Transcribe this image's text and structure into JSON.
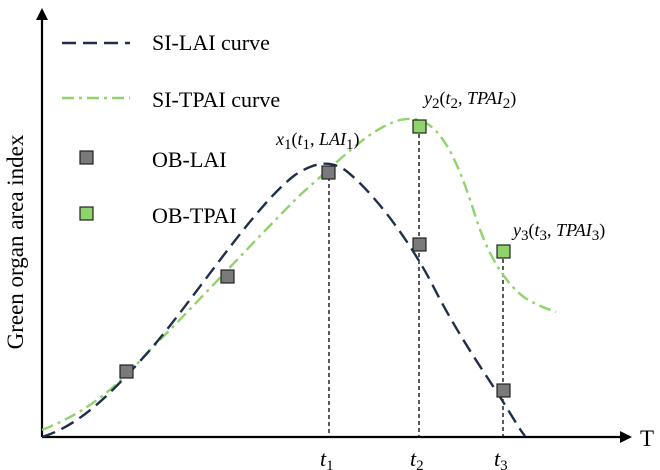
{
  "legend": {
    "items": [
      {
        "label": "SI-LAI curve",
        "kind": "line",
        "color": "#1f2f4a",
        "dash": "dashed"
      },
      {
        "label": "SI-TPAI curve",
        "kind": "line",
        "color": "#8fd36b",
        "dash": "dash-dot"
      },
      {
        "label": "OB-LAI",
        "kind": "marker",
        "color": "#7a7a7a"
      },
      {
        "label": "OB-TPAI",
        "kind": "marker",
        "color": "#8fd36b"
      }
    ]
  },
  "axes": {
    "y_title": "Green organ area index",
    "x_end_label": "T"
  },
  "ticks": [
    {
      "main": "t",
      "sub": "1"
    },
    {
      "main": "t",
      "sub": "2"
    },
    {
      "main": "t",
      "sub": "3"
    }
  ],
  "annotations": [
    {
      "var": "x",
      "idx": "1",
      "open": "(",
      "t": "t",
      "tsub": "1",
      "comma": ", ",
      "val": "LAI",
      "vsub": "1",
      "close": ")"
    },
    {
      "var": "y",
      "idx": "2",
      "open": "(",
      "t": "t",
      "tsub": "2",
      "comma": ", ",
      "val": "TPAI",
      "vsub": "2",
      "close": ")"
    },
    {
      "var": "y",
      "idx": "3",
      "open": "(",
      "t": "t",
      "tsub": "3",
      "comma": ", ",
      "val": "TPAI",
      "vsub": "3",
      "close": ")"
    }
  ],
  "colors": {
    "lai_curve": "#1f2f4a",
    "tpai_curve": "#8fd36b",
    "lai_marker": "#7a7a7a",
    "tpai_marker": "#8fd36b",
    "axis": "#000000"
  }
}
